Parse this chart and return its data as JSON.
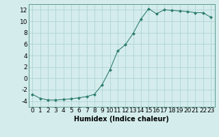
{
  "x": [
    0,
    1,
    2,
    3,
    4,
    5,
    6,
    7,
    8,
    9,
    10,
    11,
    12,
    13,
    14,
    15,
    16,
    17,
    18,
    19,
    20,
    21,
    22,
    23
  ],
  "y": [
    -2.8,
    -3.5,
    -3.8,
    -3.8,
    -3.7,
    -3.6,
    -3.4,
    -3.2,
    -2.8,
    -1.1,
    1.5,
    4.8,
    5.9,
    7.9,
    10.4,
    12.2,
    11.3,
    12.0,
    11.9,
    11.8,
    11.7,
    11.5,
    11.5,
    10.7
  ],
  "line_color": "#2e7d6e",
  "marker": "D",
  "marker_size": 2.0,
  "bg_color": "#d4ecec",
  "grid_color": "#b0d4d4",
  "xlabel": "Humidex (Indice chaleur)",
  "ylim": [
    -5,
    13
  ],
  "xlim": [
    -0.5,
    23.5
  ],
  "yticks": [
    -4,
    -2,
    0,
    2,
    4,
    6,
    8,
    10,
    12
  ],
  "xticks": [
    0,
    1,
    2,
    3,
    4,
    5,
    6,
    7,
    8,
    9,
    10,
    11,
    12,
    13,
    14,
    15,
    16,
    17,
    18,
    19,
    20,
    21,
    22,
    23
  ],
  "font_size": 6.5
}
